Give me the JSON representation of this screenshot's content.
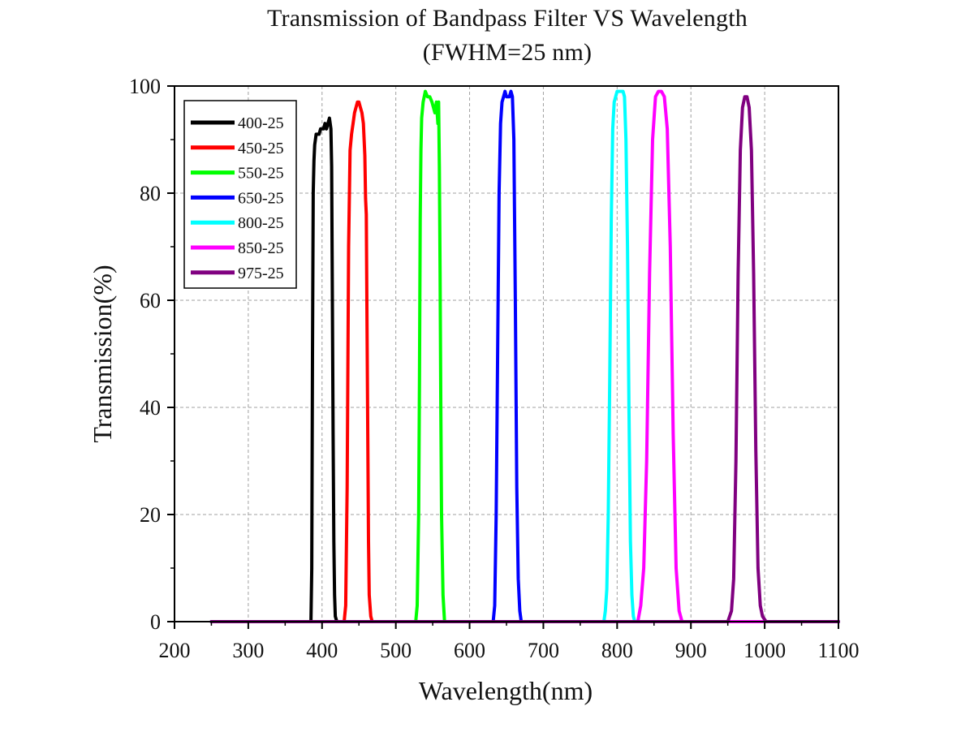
{
  "chart_data": {
    "type": "line",
    "title": "Transmission of Bandpass Filter VS Wavelength",
    "subtitle": "(FWHM=25 nm)",
    "xlabel": "Wavelength(nm)",
    "ylabel": "Transmission(%)",
    "xlim": [
      200,
      1100
    ],
    "ylim": [
      0,
      100
    ],
    "xticks": [
      200,
      300,
      400,
      500,
      600,
      700,
      800,
      900,
      1000,
      1100
    ],
    "yticks": [
      0,
      20,
      40,
      60,
      80,
      100
    ],
    "grid": true,
    "legend_position": "top-left",
    "series": [
      {
        "name": "400-25",
        "color": "#000000",
        "x": [
          250,
          385,
          386,
          387,
          388,
          389,
          390,
          392,
          394,
          396,
          398,
          400,
          402,
          404,
          406,
          408,
          410,
          412,
          413,
          414,
          415,
          416,
          417,
          418,
          420,
          1100
        ],
        "y": [
          0,
          0,
          10,
          50,
          80,
          86,
          89,
          91,
          91,
          91,
          92,
          92,
          92,
          93,
          92,
          93,
          94,
          92,
          85,
          60,
          35,
          15,
          5,
          1,
          0,
          0
        ]
      },
      {
        "name": "450-25",
        "color": "#ff0000",
        "x": [
          250,
          430,
          432,
          434,
          436,
          438,
          440,
          442,
          444,
          446,
          448,
          450,
          452,
          454,
          456,
          457,
          458,
          459,
          460,
          461,
          462,
          463,
          464,
          466,
          468,
          1100
        ],
        "y": [
          0,
          0,
          3,
          25,
          70,
          88,
          91,
          93,
          95,
          96,
          97,
          97,
          96,
          95,
          93,
          90,
          87,
          79,
          76,
          55,
          35,
          15,
          5,
          1,
          0,
          0
        ]
      },
      {
        "name": "550-25",
        "color": "#00ff00",
        "x": [
          250,
          527,
          529,
          531,
          532,
          533,
          534,
          535,
          537,
          540,
          543,
          546,
          549,
          551,
          553,
          554,
          555,
          556,
          557,
          558,
          559,
          560,
          561,
          562,
          564,
          566,
          1100
        ],
        "y": [
          0,
          0,
          3,
          20,
          45,
          75,
          88,
          94,
          97,
          99,
          98,
          98,
          97,
          96,
          95,
          96,
          97,
          95,
          93,
          97,
          85,
          65,
          40,
          20,
          5,
          0,
          0
        ]
      },
      {
        "name": "650-25",
        "color": "#0000ff",
        "x": [
          250,
          632,
          634,
          636,
          638,
          640,
          642,
          644,
          646,
          648,
          650,
          652,
          654,
          656,
          658,
          660,
          662,
          664,
          666,
          668,
          670,
          1100
        ],
        "y": [
          0,
          0,
          3,
          20,
          50,
          80,
          93,
          97,
          98,
          99,
          98,
          98,
          98,
          99,
          98,
          90,
          60,
          25,
          8,
          2,
          0,
          0
        ]
      },
      {
        "name": "800-25",
        "color": "#00ffff",
        "x": [
          250,
          782,
          784,
          786,
          788,
          790,
          792,
          794,
          796,
          798,
          800,
          804,
          808,
          810,
          812,
          814,
          816,
          818,
          820,
          822,
          824,
          1100
        ],
        "y": [
          0,
          0,
          2,
          6,
          20,
          45,
          75,
          92,
          97,
          98,
          99,
          99,
          99,
          98,
          90,
          70,
          40,
          15,
          5,
          1,
          0,
          0
        ]
      },
      {
        "name": "850-25",
        "color": "#ff00ff",
        "x": [
          250,
          828,
          832,
          836,
          840,
          844,
          848,
          852,
          856,
          860,
          864,
          868,
          872,
          876,
          880,
          884,
          888,
          1100
        ],
        "y": [
          0,
          0,
          3,
          10,
          30,
          65,
          90,
          98,
          99,
          99,
          98,
          92,
          70,
          35,
          10,
          2,
          0,
          0
        ]
      },
      {
        "name": "975-25",
        "color": "#800080",
        "x": [
          250,
          950,
          955,
          958,
          961,
          964,
          967,
          970,
          973,
          976,
          979,
          982,
          985,
          988,
          991,
          994,
          997,
          1002,
          1100
        ],
        "y": [
          0,
          0,
          2,
          8,
          30,
          65,
          88,
          96,
          98,
          98,
          96,
          88,
          65,
          32,
          10,
          3,
          1,
          0,
          0
        ]
      }
    ]
  }
}
